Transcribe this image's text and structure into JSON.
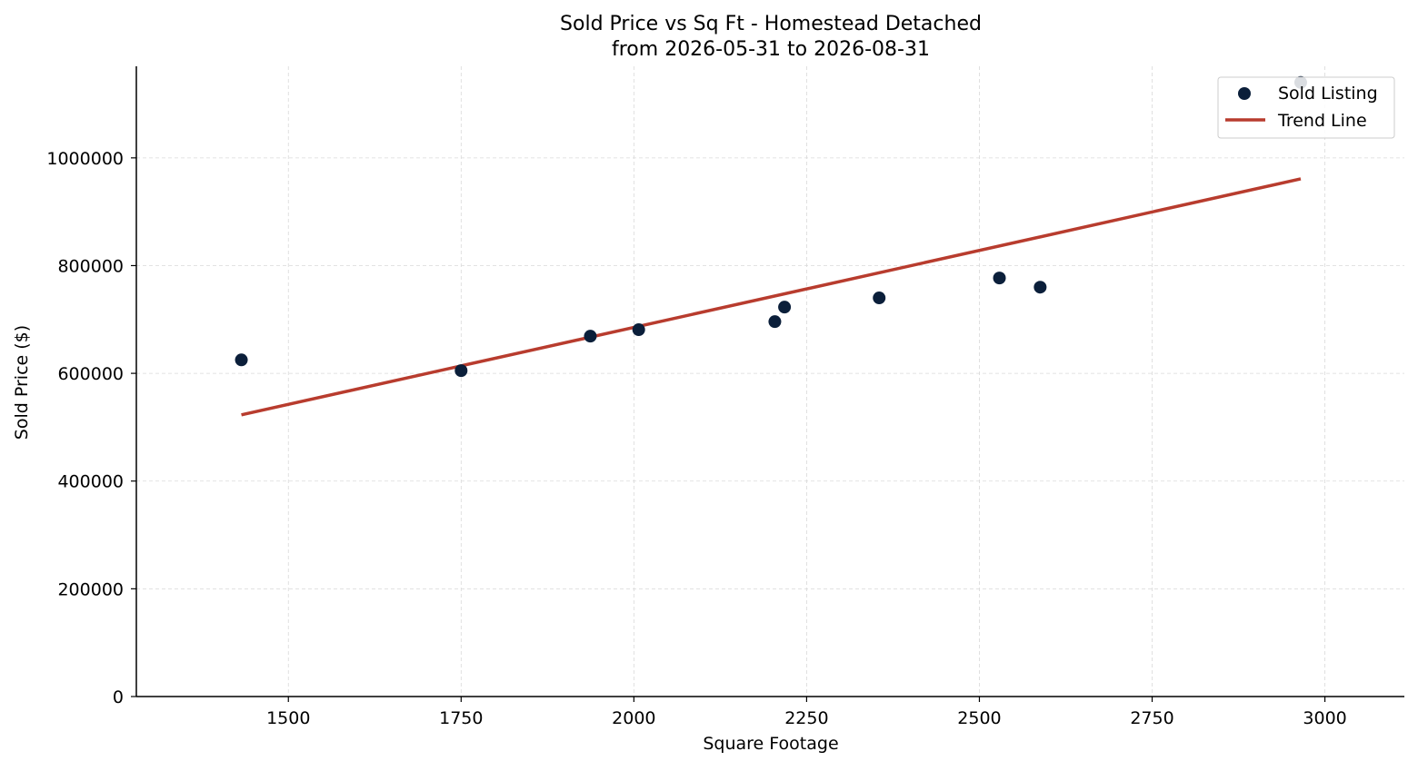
{
  "chart_data": {
    "type": "scatter",
    "title_line1": "Sold Price vs Sq Ft - Homestead Detached",
    "title_line2": "from 2026-05-31 to 2026-08-31",
    "xlabel": "Square Footage",
    "ylabel": "Sold Price ($)",
    "xlim": [
      1280,
      3115
    ],
    "ylim": [
      0,
      1170000
    ],
    "x_ticks": [
      1500,
      1750,
      2000,
      2250,
      2500,
      2750,
      3000
    ],
    "y_ticks": [
      0,
      200000,
      400000,
      600000,
      800000,
      1000000
    ],
    "grid": true,
    "legend_position": "top-right",
    "series": [
      {
        "name": "Sold Listing",
        "kind": "scatter",
        "color": "#0b1f3a",
        "points": [
          {
            "x": 1432,
            "y": 625000
          },
          {
            "x": 1750,
            "y": 605000
          },
          {
            "x": 1937,
            "y": 669000
          },
          {
            "x": 2007,
            "y": 681000
          },
          {
            "x": 2204,
            "y": 696000
          },
          {
            "x": 2218,
            "y": 723000
          },
          {
            "x": 2355,
            "y": 740000
          },
          {
            "x": 2529,
            "y": 777000
          },
          {
            "x": 2588,
            "y": 760000
          },
          {
            "x": 2965,
            "y": 1140000
          }
        ]
      },
      {
        "name": "Trend Line",
        "kind": "line",
        "color": "#b83c2e",
        "points": [
          {
            "x": 1432,
            "y": 523000
          },
          {
            "x": 2965,
            "y": 961000
          }
        ]
      }
    ]
  }
}
